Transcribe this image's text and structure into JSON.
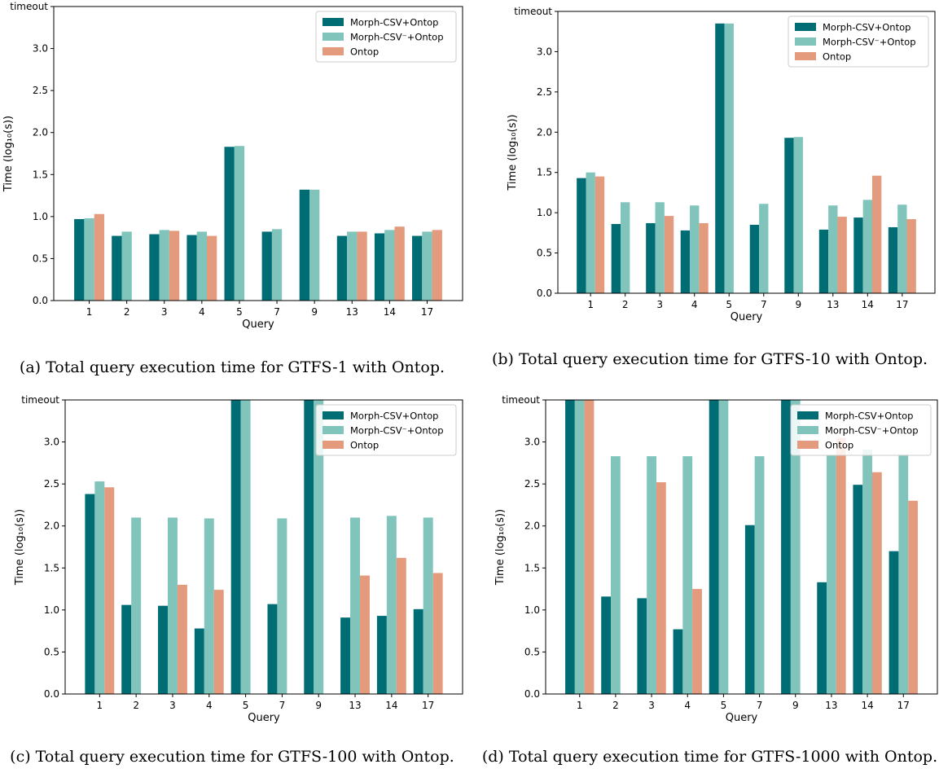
{
  "colors": {
    "morph": "#006d75",
    "morph_minus": "#80c4bc",
    "ontop": "#e49a7c"
  },
  "chart_data": [
    {
      "type": "bar",
      "caption": "(a) Total query execution time for GTFS-1 with Ontop.",
      "categories": [
        "1",
        "2",
        "3",
        "4",
        "5",
        "7",
        "9",
        "13",
        "14",
        "17"
      ],
      "series": [
        {
          "name": "Morph-CSV+Ontop",
          "values": [
            0.97,
            0.77,
            0.79,
            0.78,
            1.83,
            0.82,
            1.32,
            0.77,
            0.8,
            0.77
          ]
        },
        {
          "name": "Morph-CSV⁻+Ontop",
          "values": [
            0.98,
            0.82,
            0.84,
            0.82,
            1.84,
            0.85,
            1.32,
            0.82,
            0.84,
            0.82
          ]
        },
        {
          "name": "Ontop",
          "values": [
            1.03,
            0,
            0.83,
            0.77,
            0,
            0,
            0,
            0.82,
            0.88,
            0.84
          ]
        }
      ],
      "xlabel": "Query",
      "ylabel": "Time (log₁₀(s))",
      "ylim": [
        0,
        3.5
      ],
      "yticks": [
        "0.0",
        "0.5",
        "1.0",
        "1.5",
        "2.0",
        "2.5",
        "3.0",
        "timeout"
      ],
      "legend": "top-right"
    },
    {
      "type": "bar",
      "caption": "(b) Total query execution time for GTFS-10 with Ontop.",
      "categories": [
        "1",
        "2",
        "3",
        "4",
        "5",
        "7",
        "9",
        "13",
        "14",
        "17"
      ],
      "series": [
        {
          "name": "Morph-CSV+Ontop",
          "values": [
            1.43,
            0.86,
            0.87,
            0.78,
            3.35,
            0.85,
            1.93,
            0.79,
            0.94,
            0.82
          ]
        },
        {
          "name": "Morph-CSV⁻+Ontop",
          "values": [
            1.5,
            1.13,
            1.13,
            1.09,
            3.35,
            1.11,
            1.94,
            1.09,
            1.16,
            1.1
          ]
        },
        {
          "name": "Ontop",
          "values": [
            1.45,
            0,
            0.96,
            0.87,
            0,
            0,
            0,
            0.95,
            1.46,
            0.92
          ]
        }
      ],
      "xlabel": "Query",
      "ylabel": "Time (log₁₀(s))",
      "ylim": [
        0,
        3.5
      ],
      "yticks": [
        "0.0",
        "0.5",
        "1.0",
        "1.5",
        "2.0",
        "2.5",
        "3.0",
        "timeout"
      ],
      "legend": "top-right"
    },
    {
      "type": "bar",
      "caption": "(c) Total query execution time for GTFS-100 with Ontop.",
      "categories": [
        "1",
        "2",
        "3",
        "4",
        "5",
        "7",
        "9",
        "13",
        "14",
        "17"
      ],
      "series": [
        {
          "name": "Morph-CSV+Ontop",
          "values": [
            2.38,
            1.06,
            1.05,
            0.78,
            3.5,
            1.07,
            3.5,
            0.91,
            0.93,
            1.01
          ]
        },
        {
          "name": "Morph-CSV⁻+Ontop",
          "values": [
            2.53,
            2.1,
            2.1,
            2.09,
            3.5,
            2.09,
            3.5,
            2.1,
            2.12,
            2.1
          ]
        },
        {
          "name": "Ontop",
          "values": [
            2.46,
            0,
            1.3,
            1.24,
            0,
            0,
            0,
            1.41,
            1.62,
            1.44
          ]
        }
      ],
      "xlabel": "Query",
      "ylabel": "Time (log₁₀(s))",
      "ylim": [
        0,
        3.5
      ],
      "yticks": [
        "0.0",
        "0.5",
        "1.0",
        "1.5",
        "2.0",
        "2.5",
        "3.0",
        "timeout"
      ],
      "legend": "top-right"
    },
    {
      "type": "bar",
      "caption": "(d) Total query execution time for GTFS-1000 with Ontop.",
      "categories": [
        "1",
        "2",
        "3",
        "4",
        "5",
        "7",
        "9",
        "13",
        "14",
        "17"
      ],
      "series": [
        {
          "name": "Morph-CSV+Ontop",
          "values": [
            3.5,
            1.16,
            1.14,
            0.77,
            3.5,
            2.01,
            3.5,
            1.33,
            2.49,
            1.7
          ]
        },
        {
          "name": "Morph-CSV⁻+Ontop",
          "values": [
            3.5,
            2.83,
            2.83,
            2.83,
            3.5,
            2.83,
            3.5,
            2.84,
            2.91,
            2.85
          ]
        },
        {
          "name": "Ontop",
          "values": [
            3.5,
            0,
            2.52,
            1.25,
            0,
            0,
            0,
            3.05,
            2.64,
            2.3
          ]
        }
      ],
      "xlabel": "Query",
      "ylabel": "Time (log₁₀(s))",
      "ylim": [
        0,
        3.5
      ],
      "yticks": [
        "0.0",
        "0.5",
        "1.0",
        "1.5",
        "2.0",
        "2.5",
        "3.0",
        "timeout"
      ],
      "legend": "top-right"
    }
  ]
}
